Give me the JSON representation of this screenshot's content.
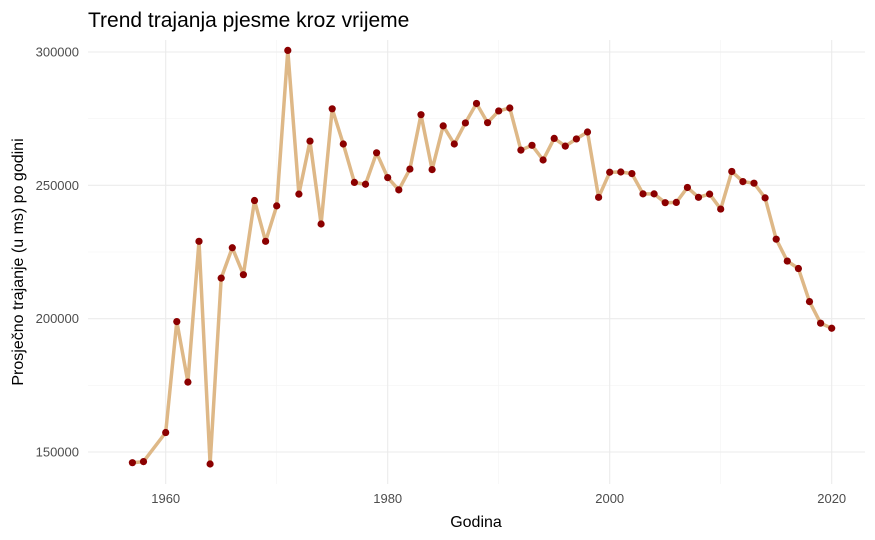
{
  "chart_data": {
    "type": "line",
    "title": "Trend trajanja pjesme kroz vrijeme",
    "xlabel": "Godina",
    "ylabel": "Prosječno trajanje (u ms) po godini",
    "xlim": [
      1953,
      2023
    ],
    "ylim": [
      138000,
      304500
    ],
    "x_ticks": [
      1960,
      1980,
      2000,
      2020
    ],
    "y_ticks": [
      150000,
      200000,
      250000,
      300000
    ],
    "x_tick_labels": [
      "1960",
      "1980",
      "2000",
      "2020"
    ],
    "y_tick_labels": [
      "150000",
      "200000",
      "250000",
      "300000"
    ],
    "grid": true,
    "legend": "none",
    "colors": {
      "line": "#deb887",
      "points": "#8b0000"
    },
    "series": [
      {
        "x": [
          1957,
          1958,
          1960,
          1961,
          1962,
          1963,
          1964,
          1965,
          1966,
          1967,
          1968,
          1969,
          1970,
          1971,
          1972,
          1973,
          1974,
          1975,
          1976,
          1977,
          1978,
          1979,
          1980,
          1981,
          1982,
          1983,
          1984,
          1985,
          1986,
          1987,
          1988,
          1989,
          1990,
          1991,
          1992,
          1993,
          1994,
          1995,
          1996,
          1997,
          1998,
          1999,
          2000,
          2001,
          2002,
          2003,
          2004,
          2005,
          2006,
          2007,
          2008,
          2009,
          2010,
          2011,
          2012,
          2013,
          2014,
          2015,
          2016,
          2017,
          2018,
          2019,
          2020
        ],
        "y": [
          146000,
          146400,
          157300,
          198900,
          176200,
          229000,
          145500,
          215200,
          226600,
          216500,
          244300,
          229000,
          242300,
          300600,
          246700,
          266600,
          235500,
          278700,
          265500,
          251100,
          250400,
          262200,
          252900,
          248300,
          256100,
          276500,
          255900,
          272300,
          265500,
          273400,
          280700,
          273500,
          277900,
          279000,
          263200,
          265000,
          259500,
          267600,
          264700,
          267400,
          270000,
          245500,
          254900,
          255000,
          254400,
          246800,
          246800,
          243500,
          243600,
          249200,
          245500,
          246700,
          241100,
          255200,
          251400,
          250800,
          245300,
          229800,
          221600,
          218800,
          206400,
          198300,
          196400
        ]
      }
    ]
  }
}
